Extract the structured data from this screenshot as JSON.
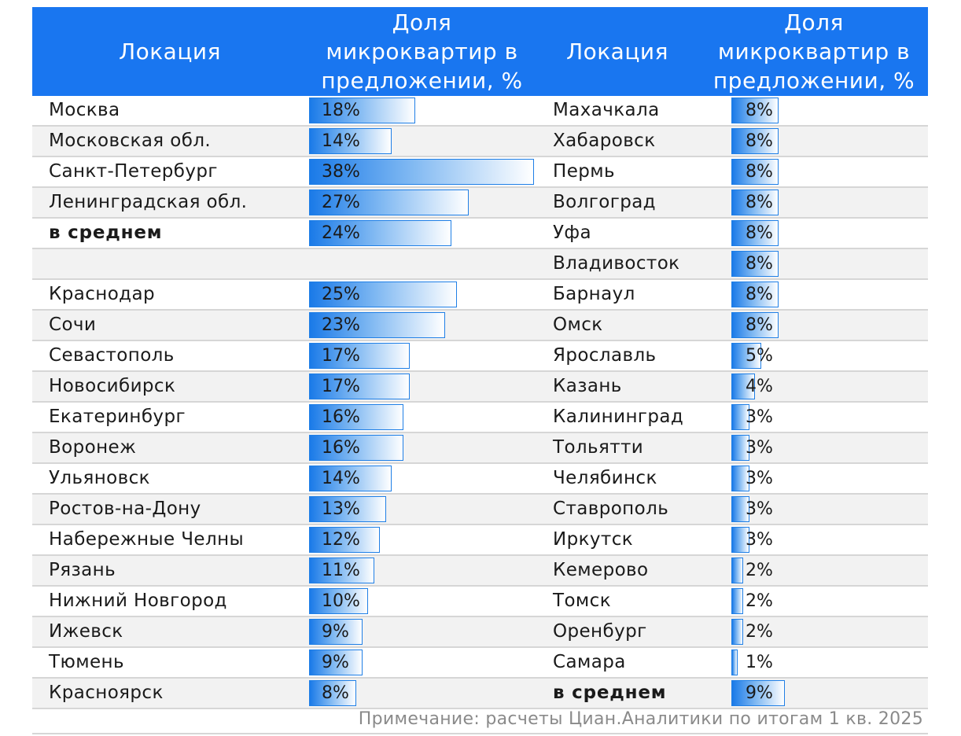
{
  "header": {
    "location_label": "Локация",
    "share_label_lines": [
      "Доля",
      "микроквартир в",
      "предложении, %"
    ]
  },
  "chart_data": {
    "type": "bar",
    "orientation": "horizontal",
    "unit": "%",
    "xlim": [
      0,
      38
    ],
    "columns": [
      {
        "rows": [
          {
            "location": "Москва",
            "value": 18,
            "label": "18%",
            "bold": false
          },
          {
            "location": "Московская обл.",
            "value": 14,
            "label": "14%",
            "bold": false
          },
          {
            "location": "Санкт-Петербург",
            "value": 38,
            "label": "38%",
            "bold": false
          },
          {
            "location": "Ленинградская обл.",
            "value": 27,
            "label": "27%",
            "bold": false
          },
          {
            "location": "в среднем",
            "value": 24,
            "label": "24%",
            "bold": true
          },
          {
            "location": "",
            "value": null,
            "label": "",
            "bold": false
          },
          {
            "location": "Краснодар",
            "value": 25,
            "label": "25%",
            "bold": false
          },
          {
            "location": "Сочи",
            "value": 23,
            "label": "23%",
            "bold": false
          },
          {
            "location": "Севастополь",
            "value": 17,
            "label": "17%",
            "bold": false
          },
          {
            "location": "Новосибирск",
            "value": 17,
            "label": "17%",
            "bold": false
          },
          {
            "location": "Екатеринбург",
            "value": 16,
            "label": "16%",
            "bold": false
          },
          {
            "location": "Воронеж",
            "value": 16,
            "label": "16%",
            "bold": false
          },
          {
            "location": "Ульяновск",
            "value": 14,
            "label": "14%",
            "bold": false
          },
          {
            "location": "Ростов-на-Дону",
            "value": 13,
            "label": "13%",
            "bold": false
          },
          {
            "location": "Набережные Челны",
            "value": 12,
            "label": "12%",
            "bold": false
          },
          {
            "location": "Рязань",
            "value": 11,
            "label": "11%",
            "bold": false
          },
          {
            "location": "Нижний Новгород",
            "value": 10,
            "label": "10%",
            "bold": false
          },
          {
            "location": "Ижевск",
            "value": 9,
            "label": "9%",
            "bold": false
          },
          {
            "location": "Тюмень",
            "value": 9,
            "label": "9%",
            "bold": false
          },
          {
            "location": "Красноярск",
            "value": 8,
            "label": "8%",
            "bold": false
          }
        ]
      },
      {
        "rows": [
          {
            "location": "Махачкала",
            "value": 8,
            "label": "8%",
            "bold": false
          },
          {
            "location": "Хабаровск",
            "value": 8,
            "label": "8%",
            "bold": false
          },
          {
            "location": "Пермь",
            "value": 8,
            "label": "8%",
            "bold": false
          },
          {
            "location": "Волгоград",
            "value": 8,
            "label": "8%",
            "bold": false
          },
          {
            "location": "Уфа",
            "value": 8,
            "label": "8%",
            "bold": false
          },
          {
            "location": "Владивосток",
            "value": 8,
            "label": "8%",
            "bold": false
          },
          {
            "location": "Барнаул",
            "value": 8,
            "label": "8%",
            "bold": false
          },
          {
            "location": "Омск",
            "value": 8,
            "label": "8%",
            "bold": false
          },
          {
            "location": "Ярославль",
            "value": 5,
            "label": "5%",
            "bold": false
          },
          {
            "location": "Казань",
            "value": 4,
            "label": "4%",
            "bold": false
          },
          {
            "location": "Калининград",
            "value": 3,
            "label": "3%",
            "bold": false
          },
          {
            "location": "Тольятти",
            "value": 3,
            "label": "3%",
            "bold": false
          },
          {
            "location": "Челябинск",
            "value": 3,
            "label": "3%",
            "bold": false
          },
          {
            "location": "Ставрополь",
            "value": 3,
            "label": "3%",
            "bold": false
          },
          {
            "location": "Иркутск",
            "value": 3,
            "label": "3%",
            "bold": false
          },
          {
            "location": "Кемерово",
            "value": 2,
            "label": "2%",
            "bold": false
          },
          {
            "location": "Томск",
            "value": 2,
            "label": "2%",
            "bold": false
          },
          {
            "location": "Оренбург",
            "value": 2,
            "label": "2%",
            "bold": false
          },
          {
            "location": "Самара",
            "value": 1,
            "label": "1%",
            "bold": false
          },
          {
            "location": "в среднем",
            "value": 9,
            "label": "9%",
            "bold": true
          }
        ]
      }
    ]
  },
  "footer": {
    "note": "Примечание: расчеты Циан.Аналитики по итогам 1 кв. 2025"
  },
  "colors": {
    "header_bg": "#1976f0",
    "bar_start": "#1a7ae8",
    "bar_mid": "#7fb8f2",
    "bar_border": "#1f7fe6",
    "row_alt": "#f2f2f2",
    "note_text": "#8a8a8a"
  }
}
